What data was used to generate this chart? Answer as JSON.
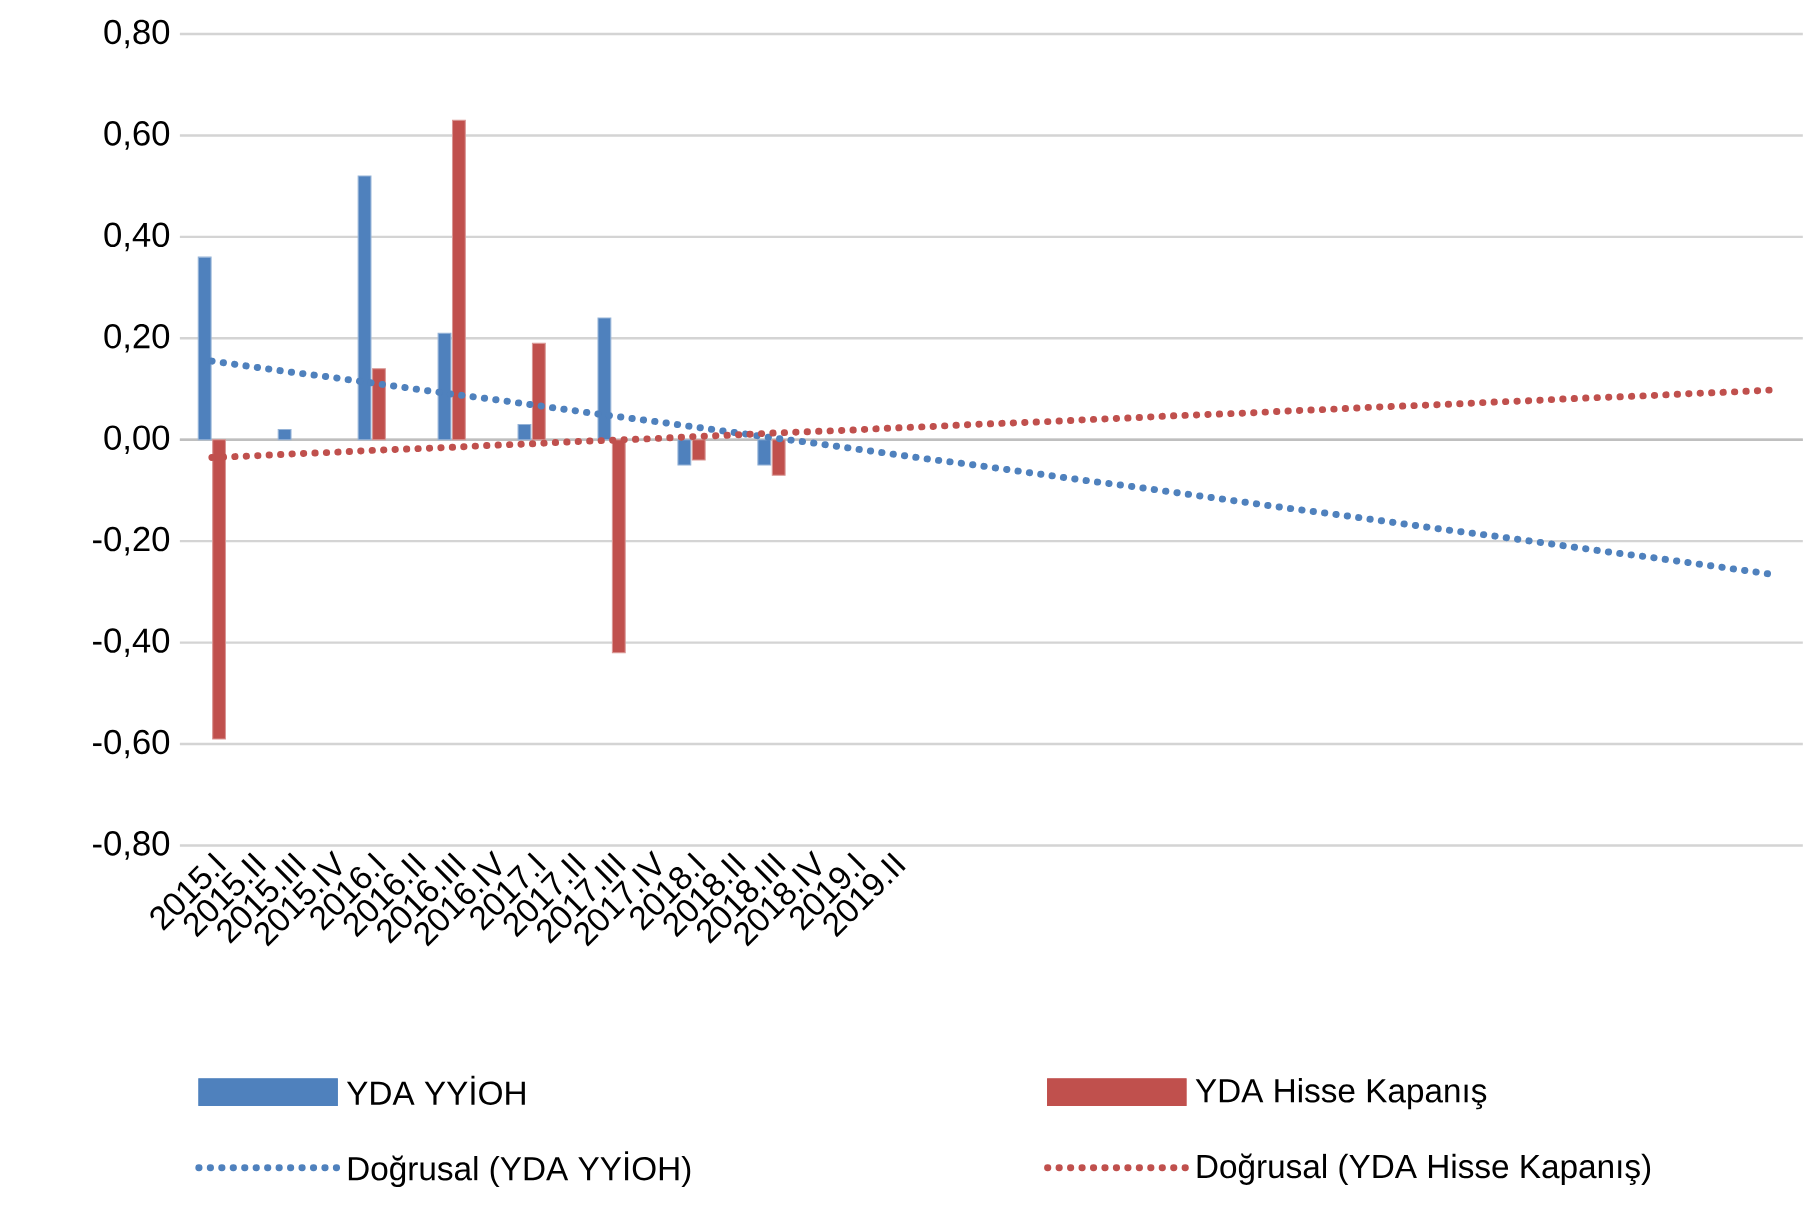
{
  "chart_data": {
    "type": "bar",
    "categories": [
      "2015.I",
      "2015.II",
      "2015.III",
      "2015.IV",
      "2016.I",
      "2016.II",
      "2016.III",
      "2016.IV",
      "2017.I",
      "2017.II",
      "2017.III",
      "2017.IV",
      "2018.I",
      "2018.II",
      "2018.III",
      "2018.IV",
      "2019.I",
      "2019.II",
      null,
      null,
      null,
      null,
      null,
      null,
      null,
      null,
      null,
      null,
      null,
      null,
      null,
      null,
      null,
      null,
      null,
      null,
      null,
      null,
      null,
      null
    ],
    "series": [
      {
        "name": "YDA YYİOH",
        "color": "#4f81bd",
        "values": [
          0.36,
          null,
          0.02,
          null,
          0.52,
          null,
          0.21,
          null,
          0.03,
          null,
          0.24,
          null,
          -0.05,
          null,
          -0.05,
          null,
          null,
          null,
          null,
          null,
          null,
          null,
          null,
          null,
          null,
          null,
          null,
          null,
          null,
          null,
          null,
          null,
          null,
          null,
          null,
          null,
          null,
          null,
          null,
          null
        ]
      },
      {
        "name": "YDA Hisse Kapanış",
        "color": "#c0504d",
        "values": [
          -0.59,
          null,
          null,
          null,
          0.14,
          null,
          0.63,
          null,
          0.19,
          null,
          -0.42,
          null,
          -0.04,
          null,
          -0.07,
          null,
          null,
          null,
          null,
          null,
          null,
          null,
          null,
          null,
          null,
          null,
          null,
          null,
          null,
          null,
          null,
          null,
          null,
          null,
          null,
          null,
          null,
          null,
          null,
          null
        ]
      },
      {
        "name": "Doğrusal (YDA YYİOH)",
        "type": "line",
        "color": "#4f81bd",
        "line_style": "dotted",
        "values": [
          0.155,
          0.144,
          0.133,
          0.123,
          0.112,
          0.101,
          0.09,
          0.08,
          0.069,
          0.058,
          0.047,
          0.037,
          0.026,
          0.015,
          0.004,
          -0.006,
          -0.017,
          -0.028,
          -0.039,
          -0.049,
          -0.06,
          -0.071,
          -0.082,
          -0.092,
          -0.103,
          -0.114,
          -0.125,
          -0.136,
          -0.146,
          -0.157,
          -0.168,
          -0.179,
          -0.189,
          -0.2,
          -0.211,
          -0.222,
          -0.232,
          -0.243,
          -0.254,
          -0.265
        ]
      },
      {
        "name": "Doğrusal (YDA Hisse Kapanış)",
        "type": "line",
        "color": "#c0504d",
        "line_style": "dotted",
        "values": [
          -0.035,
          -0.032,
          -0.028,
          -0.025,
          -0.021,
          -0.018,
          -0.015,
          -0.011,
          -0.008,
          -0.004,
          -0.001,
          0.002,
          0.006,
          0.009,
          0.013,
          0.016,
          0.019,
          0.023,
          0.026,
          0.03,
          0.033,
          0.036,
          0.04,
          0.043,
          0.047,
          0.05,
          0.053,
          0.057,
          0.06,
          0.064,
          0.067,
          0.07,
          0.074,
          0.077,
          0.081,
          0.084,
          0.087,
          0.091,
          0.094,
          0.098
        ]
      }
    ],
    "ylim": [
      -0.8,
      0.8
    ],
    "yticks": [
      {
        "value": -0.8,
        "label": "-0,80"
      },
      {
        "value": -0.6,
        "label": "-0,60"
      },
      {
        "value": -0.4,
        "label": "-0,40"
      },
      {
        "value": -0.2,
        "label": "-0,20"
      },
      {
        "value": 0,
        "label": "0,00"
      },
      {
        "value": 0.2,
        "label": "0,20"
      },
      {
        "value": 0.4,
        "label": "0,40"
      },
      {
        "value": 0.6,
        "label": "0,60"
      },
      {
        "value": 0.8,
        "label": "0,80"
      }
    ],
    "grid": "y",
    "legend": "bottom",
    "marker": "none"
  }
}
